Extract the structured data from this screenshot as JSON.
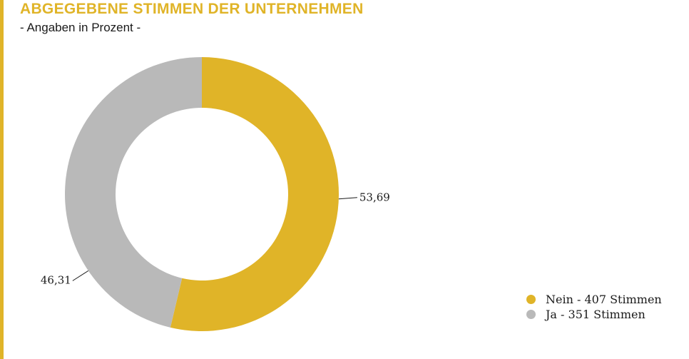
{
  "header": {
    "title": "ABGEGEBENE STIMMEN DER UNTERNEHMEN",
    "subtitle": "- Angaben in Prozent -"
  },
  "colors": {
    "accent": "#e0b428",
    "nein": "#e0b428",
    "ja": "#b9b9b9"
  },
  "chart_data": {
    "type": "pie",
    "style": "donut",
    "title": "ABGEGEBENE STIMMEN DER UNTERNEHMEN",
    "subtitle": "- Angaben in Prozent -",
    "categories": [
      "Nein - 407 Stimmen",
      "Ja - 351 Stimmen"
    ],
    "values": [
      53.69,
      46.31
    ],
    "value_labels": [
      "53,69",
      "46,31"
    ],
    "colors": [
      "#e0b428",
      "#b9b9b9"
    ],
    "start_angle_deg": 0,
    "direction": "clockwise",
    "legend_position": "bottom-right"
  },
  "legend": {
    "items": [
      {
        "label": "Nein - 407 Stimmen",
        "color": "#e0b428"
      },
      {
        "label": "Ja - 351 Stimmen",
        "color": "#b9b9b9"
      }
    ]
  }
}
